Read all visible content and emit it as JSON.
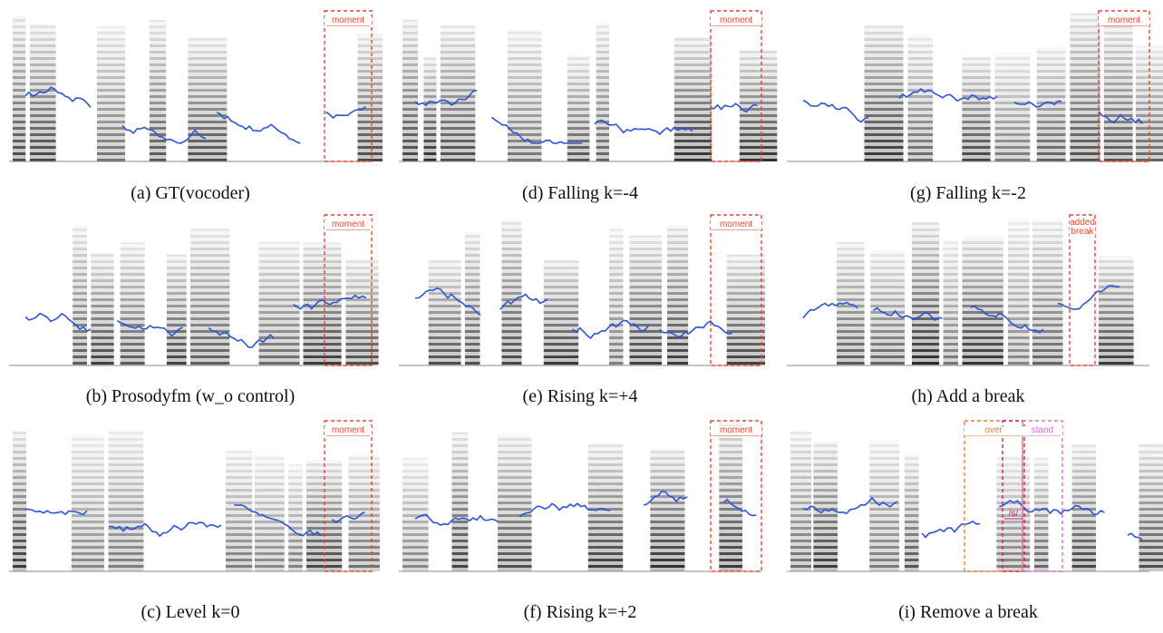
{
  "panels": [
    {
      "caption": "(a) GT(vocoder)",
      "annotations": [
        "moment"
      ]
    },
    {
      "caption": "(b) Prosodyfm (w_o control)",
      "annotations": [
        "moment"
      ]
    },
    {
      "caption": "(c) Level k=0",
      "annotations": [
        "moment"
      ]
    },
    {
      "caption": "(d) Falling k=-4",
      "annotations": [
        "moment"
      ]
    },
    {
      "caption": "(e) Rising k=+4",
      "annotations": [
        "moment"
      ]
    },
    {
      "caption": "(f) Rising k=+2",
      "annotations": [
        "moment"
      ]
    },
    {
      "caption": "(g) Falling k=-2",
      "annotations": [
        "moment"
      ]
    },
    {
      "caption": "(h) Add a break",
      "annotations": [
        "added break"
      ]
    },
    {
      "caption": "(i) Remove a break",
      "annotations": [
        "over",
        "/s/",
        "stand"
      ]
    }
  ]
}
